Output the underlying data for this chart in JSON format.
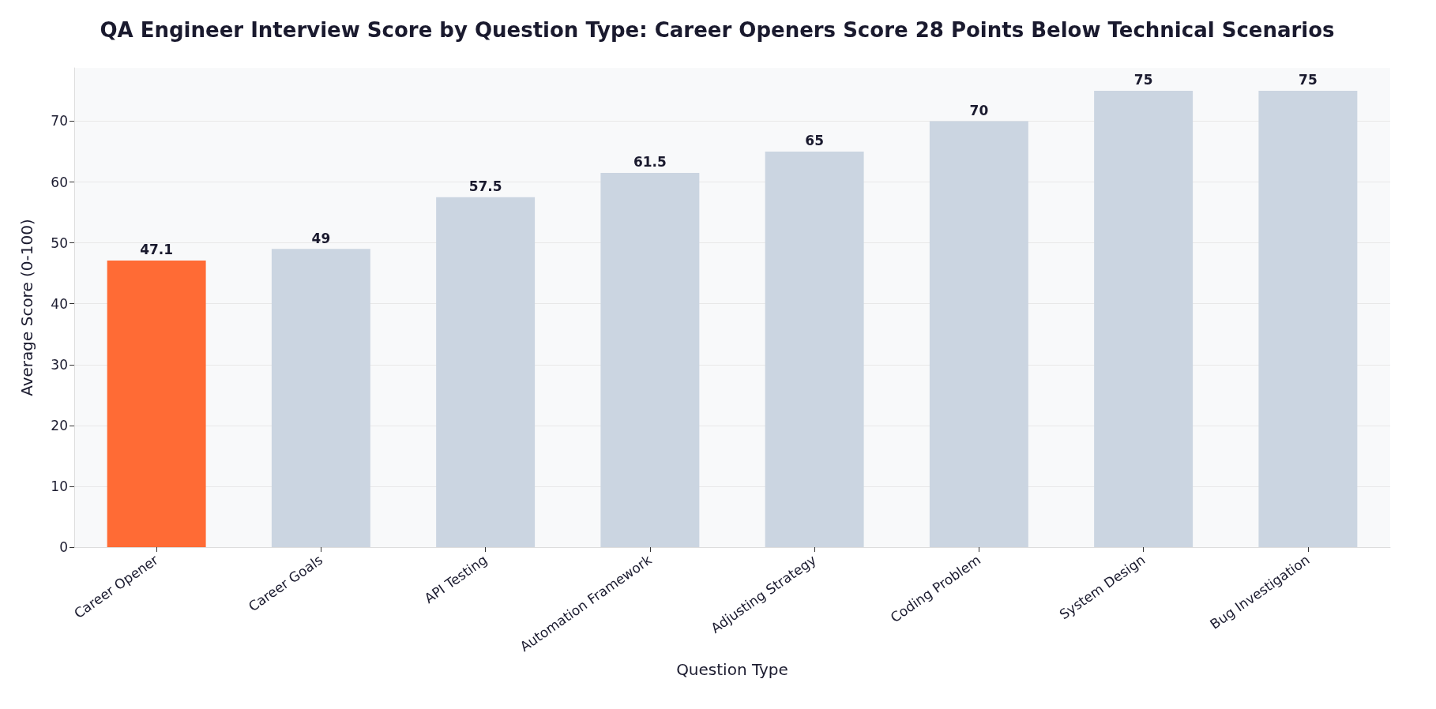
{
  "chart_data": {
    "type": "bar",
    "title": "QA Engineer Interview Score by Question Type: Career Openers Score 28 Points Below Technical Scenarios",
    "xlabel": "Question Type",
    "ylabel": "Average Score (0-100)",
    "categories": [
      "Career Opener",
      "Career Goals",
      "API Testing",
      "Automation Framework",
      "Adjusting Strategy",
      "Coding Problem",
      "System Design",
      "Bug Investigation"
    ],
    "values": [
      47.1,
      49,
      57.5,
      61.5,
      65,
      70,
      75,
      75
    ],
    "colors": [
      "#ff6b35",
      "#cbd5e1",
      "#cbd5e1",
      "#cbd5e1",
      "#cbd5e1",
      "#cbd5e1",
      "#cbd5e1",
      "#cbd5e1"
    ],
    "ylim": [
      0,
      78.75
    ],
    "yticks": [
      0,
      10,
      20,
      30,
      40,
      50,
      60,
      70
    ],
    "grid": "y",
    "data_labels": true
  }
}
